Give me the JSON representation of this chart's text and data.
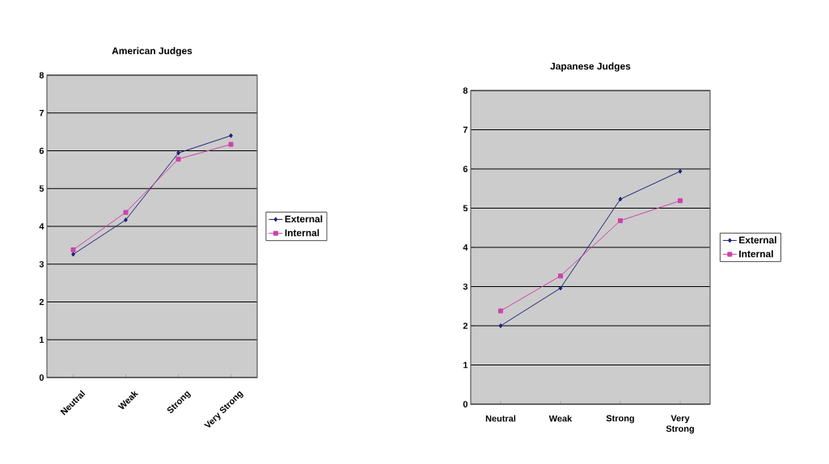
{
  "chart_data": [
    {
      "type": "line",
      "title": "American Judges",
      "categories": [
        "Neutral",
        "Weak",
        "Strong",
        "Very Strong"
      ],
      "ylim": [
        0,
        8
      ],
      "yticks": [
        0,
        1,
        2,
        3,
        4,
        5,
        6,
        7,
        8
      ],
      "grid": "y",
      "legend": "right",
      "series": [
        {
          "name": "External",
          "color": "#1f1f7a",
          "marker": "diamond",
          "values": [
            3.26,
            4.17,
            5.94,
            6.4
          ]
        },
        {
          "name": "Internal",
          "color": "#cc44aa",
          "marker": "square",
          "values": [
            3.38,
            4.37,
            5.78,
            6.17
          ]
        }
      ]
    },
    {
      "type": "line",
      "title": "Japanese Judges",
      "categories": [
        "Neutral",
        "Weak",
        "Strong",
        "Very Strong"
      ],
      "ylim": [
        0,
        8
      ],
      "yticks": [
        0,
        1,
        2,
        3,
        4,
        5,
        6,
        7,
        8
      ],
      "grid": "y",
      "legend": "right",
      "series": [
        {
          "name": "External",
          "color": "#1f1f7a",
          "marker": "diamond",
          "values": [
            2.0,
            2.96,
            5.23,
            5.94
          ]
        },
        {
          "name": "Internal",
          "color": "#cc44aa",
          "marker": "square",
          "values": [
            2.38,
            3.27,
            4.68,
            5.19
          ]
        }
      ]
    }
  ]
}
